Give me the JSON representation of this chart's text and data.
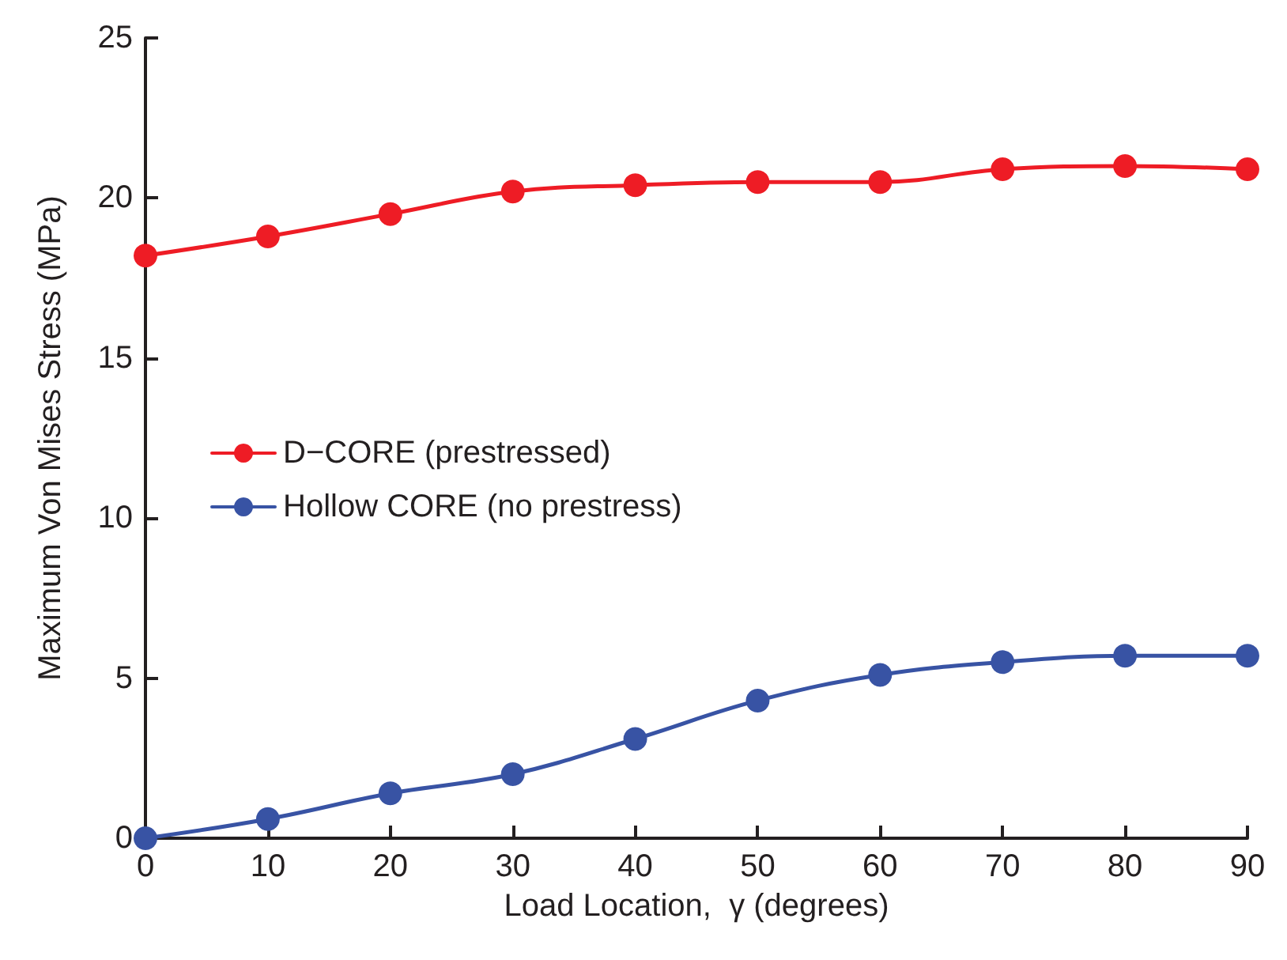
{
  "chart_data": {
    "type": "line",
    "xlabel": "Load Location,  γ (degrees)",
    "ylabel": "Maximum Von Mises Stress (MPa)",
    "x": [
      0,
      10,
      20,
      30,
      40,
      50,
      60,
      70,
      80,
      90
    ],
    "series": [
      {
        "name": "D−CORE (prestressed)",
        "color": "#ee1c25",
        "values": [
          18.2,
          18.8,
          19.5,
          20.2,
          20.4,
          20.5,
          20.5,
          20.9,
          21.0,
          20.9
        ]
      },
      {
        "name": "Hollow CORE (no prestress)",
        "color": "#3853a4",
        "values": [
          0,
          0.6,
          1.4,
          2.0,
          3.1,
          4.3,
          5.1,
          5.5,
          5.7,
          5.7
        ]
      }
    ],
    "xlim": [
      0,
      90
    ],
    "xticks": [
      0,
      10,
      20,
      30,
      40,
      50,
      60,
      70,
      80,
      90
    ],
    "ylim": [
      0,
      25
    ],
    "yticks": [
      0,
      5,
      10,
      15,
      20,
      25
    ],
    "grid": false,
    "legend": "left",
    "marker": "circle",
    "line_style": "solid"
  }
}
